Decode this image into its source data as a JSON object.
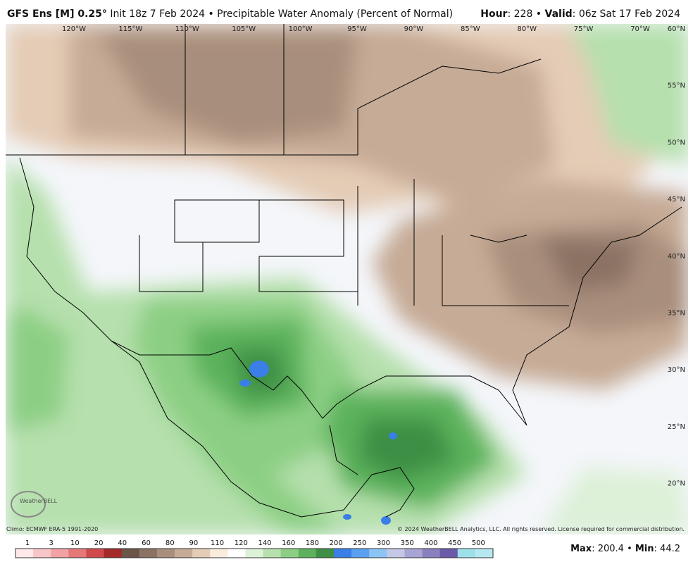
{
  "header": {
    "model": "GFS Ens [M] 0.25°",
    "title": "Init 18z 7 Feb 2024 • Precipitable Water Anomaly (Percent of Normal)",
    "hour_label": "Hour",
    "hour_value": ": 228 •",
    "valid_label": "Valid",
    "valid_value": ": 06z Sat 17 Feb 2024"
  },
  "map": {
    "longitudes": [
      "120°W",
      "115°W",
      "110°W",
      "105°W",
      "100°W",
      "95°W",
      "90°W",
      "85°W",
      "80°W",
      "75°W",
      "70°W"
    ],
    "latitudes": [
      "60°N",
      "55°N",
      "50°N",
      "45°N",
      "40°N",
      "35°N",
      "30°N",
      "25°N",
      "20°N"
    ],
    "logo": "WeatherBELL"
  },
  "footer": {
    "climo": "Climo: ECMWF ERA-5 1991-2020",
    "copyright": "© 2024 WeatherBELL Analytics, LLC. All rights reserved. License required for commercial distribution.",
    "max_label": "Max",
    "max_value": ": 200.4 •",
    "min_label": "Min",
    "min_value": ": 44.2"
  },
  "colorbar": {
    "labels": [
      "1",
      "3",
      "10",
      "20",
      "40",
      "60",
      "80",
      "90",
      "110",
      "120",
      "140",
      "160",
      "180",
      "200",
      "250",
      "300",
      "350",
      "400",
      "450",
      "500"
    ],
    "colors": [
      "#fde8ea",
      "#f8c6c8",
      "#f2a1a4",
      "#e6787a",
      "#d04a4c",
      "#a52a2a",
      "#6b5448",
      "#8b7263",
      "#a88e7c",
      "#c6ab96",
      "#e4ccb6",
      "#f8ecdc",
      "#ffffff",
      "#ddf0d8",
      "#b6e0ad",
      "#8ccf84",
      "#5cb25c",
      "#3e8f45",
      "#3a7ee8",
      "#5aa0f0",
      "#8cc4f4",
      "#c4c8e6",
      "#a8a4d4",
      "#8a80c0",
      "#6b5aa8",
      "#9ee0ea",
      "#b6e8f0"
    ]
  }
}
